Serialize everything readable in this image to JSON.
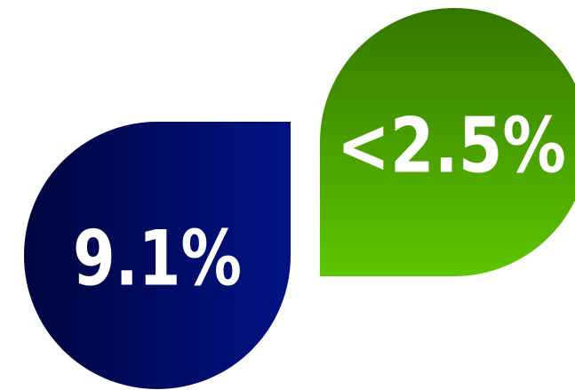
{
  "badges": [
    {
      "label": "9.1%"
    },
    {
      "label": "<2.5%"
    }
  ]
}
